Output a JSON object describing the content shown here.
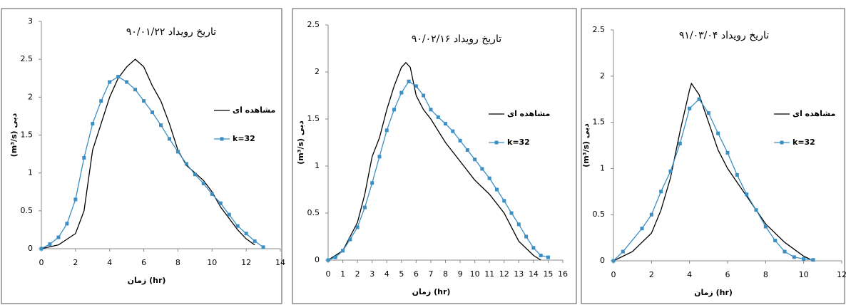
{
  "chart_data": [
    {
      "type": "line",
      "title": "تاریخ رویداد ۹۰/۰۱/۲۲",
      "x_label": "زمان (hr)",
      "y_label": "(m³/s) دبی",
      "xlim": [
        0,
        14
      ],
      "xticks": [
        0,
        2,
        4,
        6,
        8,
        10,
        12,
        14
      ],
      "ylim": [
        0,
        3
      ],
      "yticks": [
        0,
        0.5,
        1,
        1.5,
        2,
        2.5,
        3
      ],
      "legend": "right",
      "grid": false,
      "series": [
        {
          "name": "مشاهده ای",
          "color": "#000000",
          "markers": false,
          "x": [
            0,
            1,
            2,
            2.5,
            3,
            3.5,
            4,
            4.5,
            5,
            5.5,
            6,
            6.5,
            7,
            7.5,
            8,
            8.5,
            9,
            9.5,
            10,
            10.5,
            11,
            11.5,
            12,
            12.5
          ],
          "values": [
            0,
            0.05,
            0.2,
            0.5,
            1.3,
            1.65,
            2.0,
            2.25,
            2.4,
            2.5,
            2.4,
            2.15,
            1.95,
            1.65,
            1.3,
            1.1,
            1.0,
            0.9,
            0.75,
            0.55,
            0.4,
            0.25,
            0.13,
            0.05
          ]
        },
        {
          "name": "k=32",
          "color": "#3a8fc4",
          "markers": true,
          "x": [
            0,
            0.5,
            1,
            1.5,
            2,
            2.5,
            3,
            3.5,
            4,
            4.5,
            5,
            5.5,
            6,
            6.5,
            7,
            7.5,
            8,
            8.5,
            9,
            9.5,
            10,
            10.5,
            11,
            11.5,
            12,
            12.5,
            13
          ],
          "values": [
            0,
            0.06,
            0.15,
            0.33,
            0.65,
            1.2,
            1.65,
            1.95,
            2.2,
            2.27,
            2.2,
            2.1,
            1.95,
            1.8,
            1.63,
            1.45,
            1.28,
            1.12,
            0.98,
            0.86,
            0.72,
            0.6,
            0.45,
            0.3,
            0.2,
            0.1,
            0.02
          ]
        }
      ]
    },
    {
      "type": "line",
      "title": "تاریخ رویداد ۹۰/۰۲/۱۶",
      "x_label": "زمان (hr)",
      "y_label": "(m³/s) دبی",
      "xlim": [
        0,
        16
      ],
      "xticks": [
        0,
        1,
        2,
        3,
        4,
        5,
        6,
        7,
        8,
        9,
        10,
        11,
        12,
        13,
        14,
        15,
        16
      ],
      "ylim": [
        0,
        2.5
      ],
      "yticks": [
        0,
        0.5,
        1,
        1.5,
        2,
        2.5
      ],
      "legend": "right",
      "grid": false,
      "series": [
        {
          "name": "مشاهده ای",
          "color": "#000000",
          "markers": false,
          "x": [
            0,
            1,
            2,
            2.5,
            3,
            3.5,
            4,
            4.5,
            5,
            5.3,
            5.6,
            6,
            6.5,
            7,
            8,
            9,
            10,
            11,
            12,
            12.5,
            13,
            14,
            14.5
          ],
          "values": [
            0,
            0.1,
            0.4,
            0.7,
            1.1,
            1.3,
            1.6,
            1.85,
            2.05,
            2.1,
            2.05,
            1.75,
            1.6,
            1.5,
            1.25,
            1.05,
            0.85,
            0.7,
            0.5,
            0.35,
            0.2,
            0.05,
            0
          ]
        },
        {
          "name": "k=32",
          "color": "#3a8fc4",
          "markers": true,
          "x": [
            0,
            0.5,
            1,
            1.5,
            2,
            2.5,
            3,
            3.5,
            4,
            4.5,
            5,
            5.5,
            6,
            6.5,
            7,
            7.5,
            8,
            8.5,
            9,
            9.5,
            10,
            10.5,
            11,
            11.5,
            12,
            12.5,
            13,
            13.5,
            14,
            14.5,
            15
          ],
          "values": [
            0,
            0.03,
            0.1,
            0.22,
            0.35,
            0.56,
            0.82,
            1.1,
            1.38,
            1.6,
            1.78,
            1.9,
            1.85,
            1.75,
            1.6,
            1.52,
            1.45,
            1.37,
            1.27,
            1.17,
            1.07,
            0.97,
            0.87,
            0.75,
            0.63,
            0.5,
            0.38,
            0.25,
            0.13,
            0.05,
            0.03
          ]
        }
      ]
    },
    {
      "type": "line",
      "title": "تاریخ رویداد ۹۱/۰۳/۰۴",
      "x_label": "زمان (hr)",
      "y_label": "(m³/s) دبی",
      "xlim": [
        0,
        12
      ],
      "xticks": [
        0,
        2,
        4,
        6,
        8,
        10,
        12
      ],
      "ylim": [
        0,
        2.5
      ],
      "yticks": [
        0,
        0.5,
        1,
        1.5,
        2,
        2.5
      ],
      "legend": "right",
      "grid": false,
      "series": [
        {
          "name": "مشاهده ای",
          "color": "#000000",
          "markers": false,
          "x": [
            0,
            1,
            2,
            2.5,
            3,
            3.5,
            4,
            4.1,
            4.5,
            5,
            5.5,
            6,
            7,
            8,
            9,
            10,
            10.5
          ],
          "values": [
            0,
            0.1,
            0.3,
            0.55,
            0.9,
            1.4,
            1.85,
            1.92,
            1.8,
            1.5,
            1.2,
            1.0,
            0.7,
            0.4,
            0.2,
            0.05,
            0
          ]
        },
        {
          "name": "k=32",
          "color": "#3a8fc4",
          "markers": true,
          "x": [
            0,
            0.5,
            1.5,
            2,
            2.5,
            3,
            3.5,
            4,
            4.5,
            5,
            5.5,
            6,
            6.5,
            7,
            7.5,
            8,
            8.5,
            9,
            9.5,
            10,
            10.5
          ],
          "values": [
            0,
            0.1,
            0.35,
            0.5,
            0.75,
            0.97,
            1.27,
            1.65,
            1.75,
            1.6,
            1.38,
            1.17,
            0.93,
            0.72,
            0.55,
            0.37,
            0.22,
            0.1,
            0.04,
            0.02,
            0.01
          ]
        }
      ]
    }
  ]
}
